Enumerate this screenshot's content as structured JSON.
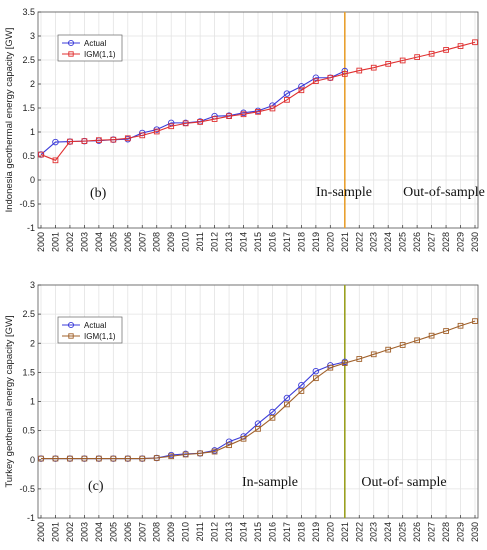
{
  "chart_data": [
    {
      "type": "line",
      "ylabel": "Indonesia geothermal energy capacity [GW]",
      "xlabel": "",
      "title": "",
      "ylim": [
        -1,
        3.5
      ],
      "yticks": [
        "-1",
        "-0.5",
        "0",
        "0.5",
        "1",
        "1.5",
        "2",
        "2.5",
        "3",
        "3.5"
      ],
      "x": [
        "2000",
        "2001",
        "2002",
        "2003",
        "2004",
        "2005",
        "2006",
        "2007",
        "2008",
        "2009",
        "2010",
        "2011",
        "2012",
        "2013",
        "2014",
        "2015",
        "2016",
        "2017",
        "2018",
        "2019",
        "2020",
        "2021",
        "2022",
        "2023",
        "2024",
        "2025",
        "2026",
        "2027",
        "2028",
        "2029",
        "2030"
      ],
      "grid": true,
      "legend_position": "top-left",
      "vline_at": "2021",
      "vline_color": "#e8a030",
      "annotations": {
        "panel": "(b)",
        "left": "In-sample",
        "right": "Out-of-sample"
      },
      "series": [
        {
          "name": "Actual",
          "color": "#3b3bd8",
          "marker": "circle",
          "values": [
            0.53,
            0.79,
            0.8,
            0.81,
            0.82,
            0.84,
            0.85,
            0.98,
            1.05,
            1.19,
            1.19,
            1.22,
            1.33,
            1.34,
            1.4,
            1.44,
            1.55,
            1.8,
            1.95,
            2.13,
            2.13,
            2.27,
            null,
            null,
            null,
            null,
            null,
            null,
            null,
            null,
            null
          ]
        },
        {
          "name": "IGM(1,1)",
          "color": "#e03030",
          "marker": "square",
          "values": [
            0.53,
            0.41,
            0.8,
            0.81,
            0.83,
            0.84,
            0.87,
            0.93,
            1.01,
            1.12,
            1.18,
            1.21,
            1.27,
            1.33,
            1.37,
            1.42,
            1.49,
            1.67,
            1.87,
            2.06,
            2.13,
            2.21,
            2.28,
            2.34,
            2.42,
            2.49,
            2.56,
            2.63,
            2.71,
            2.79,
            2.87
          ]
        }
      ]
    },
    {
      "type": "line",
      "ylabel": "Turkey geothermal energy capacity [GW]",
      "xlabel": "",
      "title": "",
      "ylim": [
        -1,
        3
      ],
      "yticks": [
        "-1",
        "-0.5",
        "0",
        "0.5",
        "1",
        "1.5",
        "2",
        "2.5",
        "3"
      ],
      "x": [
        "2000",
        "2001",
        "2002",
        "2003",
        "2004",
        "2005",
        "2006",
        "2007",
        "2008",
        "2009",
        "2010",
        "2011",
        "2012",
        "2013",
        "2014",
        "2015",
        "2016",
        "2017",
        "2018",
        "2019",
        "2020",
        "2021",
        "2022",
        "2023",
        "2024",
        "2025",
        "2026",
        "2027",
        "2028",
        "2029",
        "2030"
      ],
      "grid": true,
      "legend_position": "top-left",
      "vline_at": "2021",
      "vline_color": "#9aa020",
      "annotations": {
        "panel": "(c)",
        "left": "In-sample",
        "right": "Out-of- sample"
      },
      "series": [
        {
          "name": "Actual",
          "color": "#3b3bd8",
          "marker": "circle",
          "values": [
            0.02,
            0.02,
            0.02,
            0.02,
            0.02,
            0.02,
            0.02,
            0.02,
            0.03,
            0.08,
            0.1,
            0.11,
            0.16,
            0.31,
            0.4,
            0.62,
            0.82,
            1.06,
            1.28,
            1.52,
            1.62,
            1.68,
            null,
            null,
            null,
            null,
            null,
            null,
            null,
            null,
            null
          ]
        },
        {
          "name": "IGM(1,1)",
          "color": "#a0602a",
          "marker": "square",
          "values": [
            0.02,
            0.02,
            0.02,
            0.02,
            0.02,
            0.02,
            0.02,
            0.02,
            0.03,
            0.06,
            0.09,
            0.11,
            0.14,
            0.25,
            0.36,
            0.53,
            0.72,
            0.95,
            1.18,
            1.4,
            1.58,
            1.66,
            1.73,
            1.81,
            1.89,
            1.97,
            2.05,
            2.13,
            2.21,
            2.3,
            2.38
          ]
        }
      ]
    }
  ]
}
